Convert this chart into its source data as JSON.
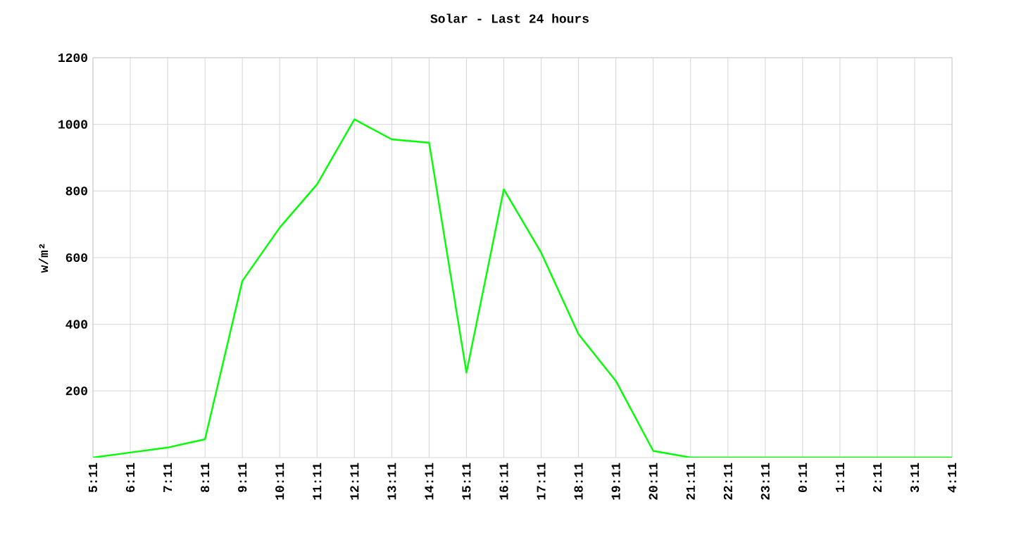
{
  "chart_data": {
    "type": "line",
    "title": "Solar - Last 24 hours",
    "ylabel": "w/m²",
    "categories": [
      "5:11",
      "6:11",
      "7:11",
      "8:11",
      "9:11",
      "10:11",
      "11:11",
      "12:11",
      "13:11",
      "14:11",
      "15:11",
      "16:11",
      "17:11",
      "18:11",
      "19:11",
      "20:11",
      "21:11",
      "22:11",
      "23:11",
      "0:11",
      "1:11",
      "2:11",
      "3:11",
      "4:11"
    ],
    "series": [
      {
        "color": "#00ff00",
        "values": [
          0,
          15,
          30,
          55,
          530,
          690,
          820,
          1015,
          955,
          945,
          255,
          805,
          615,
          370,
          230,
          20,
          0,
          0,
          0,
          0,
          0,
          0,
          0,
          0
        ]
      }
    ],
    "ylim": [
      0,
      1200
    ],
    "yticks": [
      200,
      400,
      600,
      800,
      1000,
      1200
    ],
    "grid": true,
    "marker": "none",
    "line_style": "solid"
  }
}
